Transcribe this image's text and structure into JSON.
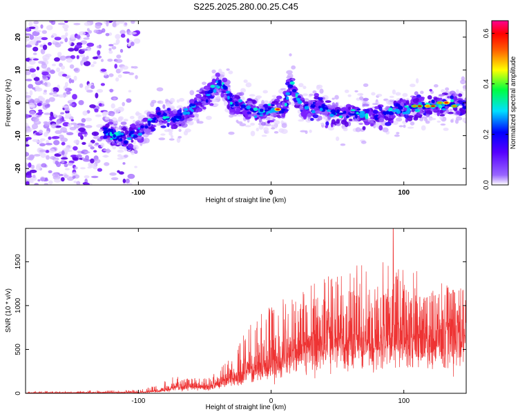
{
  "title": "S225.2025.280.00.25.C45",
  "chart_data": [
    {
      "type": "heatmap",
      "name": "spectrogram",
      "xlabel": "Height of straight line (km)",
      "ylabel": "Frequency (Hz)",
      "xlim": [
        -185,
        147
      ],
      "ylim": [
        -25,
        25
      ],
      "xticks": [
        -100,
        0,
        100
      ],
      "xtick_labels": [
        "-100",
        "0",
        "100"
      ],
      "yticks": [
        -20,
        -10,
        0,
        10,
        20
      ],
      "ytick_labels": [
        "-20",
        "-10",
        "0",
        "10",
        "20"
      ],
      "ridge": {
        "x": [
          -125,
          -110,
          -95,
          -85,
          -70,
          -60,
          -50,
          -40,
          -35,
          -30,
          -20,
          -10,
          0,
          10,
          15,
          20,
          25,
          35,
          45,
          60,
          80,
          100,
          120,
          140,
          147
        ],
        "freq_hz": [
          -9,
          -11,
          -8,
          -4,
          -5,
          -2,
          1,
          6,
          5,
          0,
          -1,
          -3,
          -2,
          -2,
          6,
          1,
          -2,
          -1,
          -3,
          -3,
          -4,
          -2,
          -1,
          0,
          -1
        ]
      },
      "noise_region_x": [
        -185,
        -110
      ],
      "colorbar": {
        "label": "Normalized spectral amplitude",
        "range": [
          0.0,
          0.65
        ],
        "ticks": [
          0.0,
          0.2,
          0.4,
          0.6
        ],
        "tick_labels": [
          "0.0",
          "0.2",
          "0.4",
          "0.6"
        ],
        "colormap": [
          "#ffffff",
          "#7f00ff",
          "#0000ff",
          "#00ffff",
          "#00ff00",
          "#ffff00",
          "#ff8000",
          "#ff0000",
          "#ff00aa"
        ]
      }
    },
    {
      "type": "line",
      "name": "snr",
      "xlabel": "Height of straight line (km)",
      "ylabel": "SNR (10 * v/v)",
      "xlim": [
        -185,
        147
      ],
      "ylim": [
        0,
        1880
      ],
      "xticks": [
        -100,
        0,
        100
      ],
      "xtick_labels": [
        "-100",
        "0",
        "100"
      ],
      "yticks": [
        0,
        500,
        1000,
        1500
      ],
      "ytick_labels": [
        "0",
        "500",
        "1000",
        "1500"
      ],
      "color": "#ee3333",
      "envelope": {
        "x": [
          -185,
          -100,
          -90,
          -80,
          -70,
          -60,
          -50,
          -40,
          -30,
          -20,
          -10,
          0,
          10,
          20,
          30,
          40,
          50,
          60,
          70,
          80,
          90,
          100,
          110,
          120,
          130,
          140,
          147
        ],
        "mean": [
          5,
          12,
          20,
          40,
          90,
          100,
          80,
          120,
          180,
          260,
          340,
          380,
          450,
          560,
          620,
          650,
          650,
          700,
          700,
          650,
          700,
          720,
          700,
          680,
          720,
          700,
          720
        ],
        "peak": [
          20,
          40,
          80,
          140,
          220,
          190,
          180,
          250,
          430,
          700,
          880,
          1000,
          1100,
          1200,
          1250,
          1350,
          1350,
          1500,
          1600,
          1450,
          1600,
          1500,
          1400,
          1300,
          1250,
          1200,
          1150
        ]
      },
      "max_spike": {
        "x": 92,
        "y": 1880
      }
    }
  ]
}
